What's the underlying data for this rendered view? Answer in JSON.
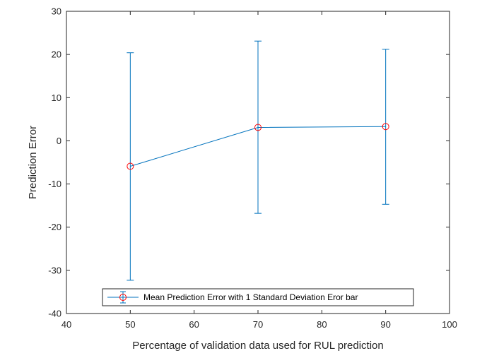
{
  "chart_data": {
    "type": "line",
    "xlabel": "Percentage of validation data used for RUL prediction",
    "ylabel": "Prediction Error",
    "xlim": [
      40,
      100
    ],
    "ylim": [
      -40,
      30
    ],
    "xticks": [
      40,
      50,
      60,
      70,
      80,
      90,
      100
    ],
    "yticks": [
      30,
      20,
      10,
      0,
      -10,
      -20,
      -30,
      -40
    ],
    "grid": false,
    "legend_placement": "bottom-center",
    "series": [
      {
        "name": "Mean Prediction Error with 1 Standard Deviation Eror bar",
        "x": [
          50,
          70,
          90
        ],
        "y": [
          -5.9,
          3.1,
          3.3
        ],
        "err_lower": [
          -32.3,
          -16.8,
          -14.7
        ],
        "err_upper": [
          20.4,
          23.1,
          21.2
        ],
        "line_color": "#0072BD",
        "marker": "circle",
        "marker_color": "#FF0000"
      }
    ]
  }
}
